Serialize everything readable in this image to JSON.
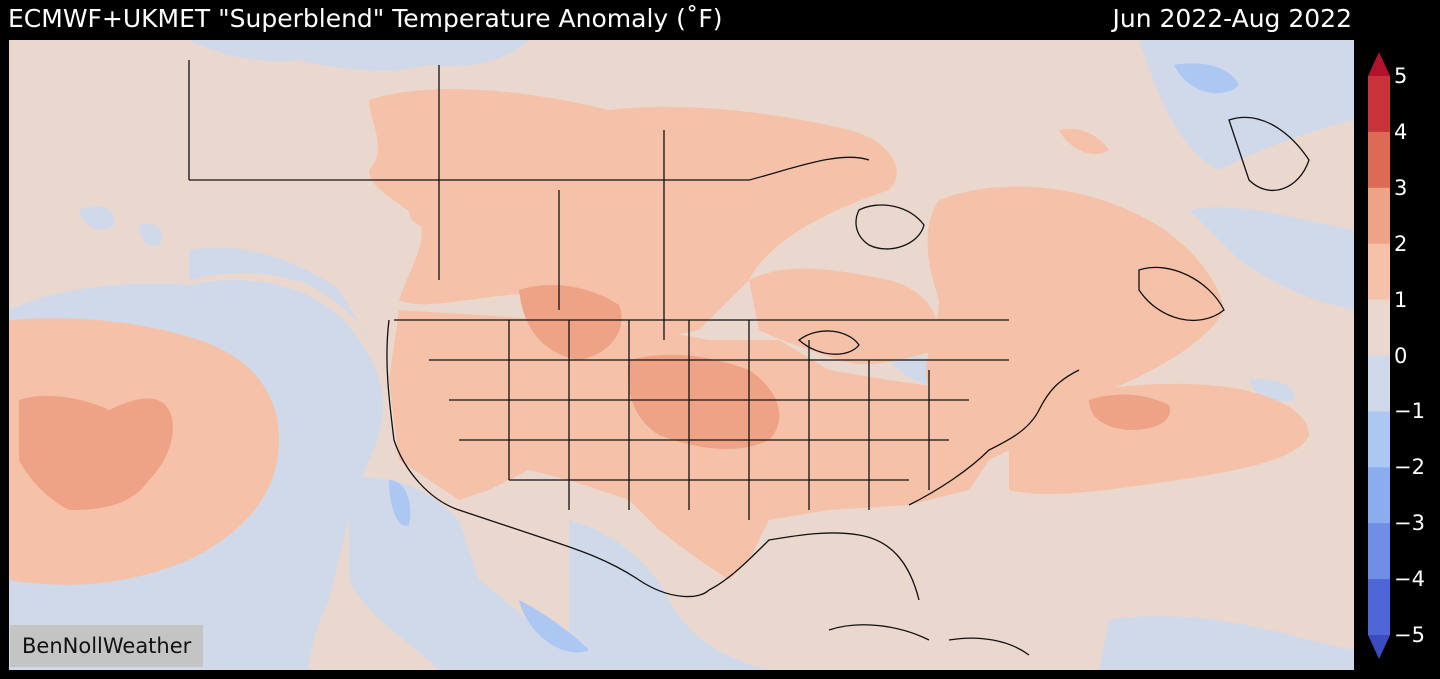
{
  "header": {
    "title": "ECMWF+UKMET \"Superblend\" Temperature Anomaly (˚F)",
    "period": "Jun 2022-Aug 2022"
  },
  "credit": "BenNollWeather",
  "colorbar": {
    "ticks": [
      "5",
      "4",
      "3",
      "2",
      "1",
      "0",
      "−1",
      "−2",
      "−3",
      "−4",
      "−5"
    ],
    "bands": [
      {
        "range": "4 to 5",
        "color": "#c8323a"
      },
      {
        "range": "3 to 4",
        "color": "#dd6a55"
      },
      {
        "range": "2 to 3",
        "color": "#eea386"
      },
      {
        "range": "1 to 2",
        "color": "#f5c2a9"
      },
      {
        "range": "0 to 1",
        "color": "#ead8cf"
      },
      {
        "range": "-1 to 0",
        "color": "#cfd9ea"
      },
      {
        "range": "-2 to -1",
        "color": "#adc7f3"
      },
      {
        "range": "-3 to -2",
        "color": "#8cacf0"
      },
      {
        "range": "-4 to -3",
        "color": "#6f8ee6"
      },
      {
        "range": "-5 to -4",
        "color": "#4f66d8"
      }
    ],
    "over_color": "#b3122b",
    "under_color": "#3b4cc0"
  },
  "map": {
    "region": "North America",
    "variable": "Temperature Anomaly",
    "units": "°F"
  }
}
